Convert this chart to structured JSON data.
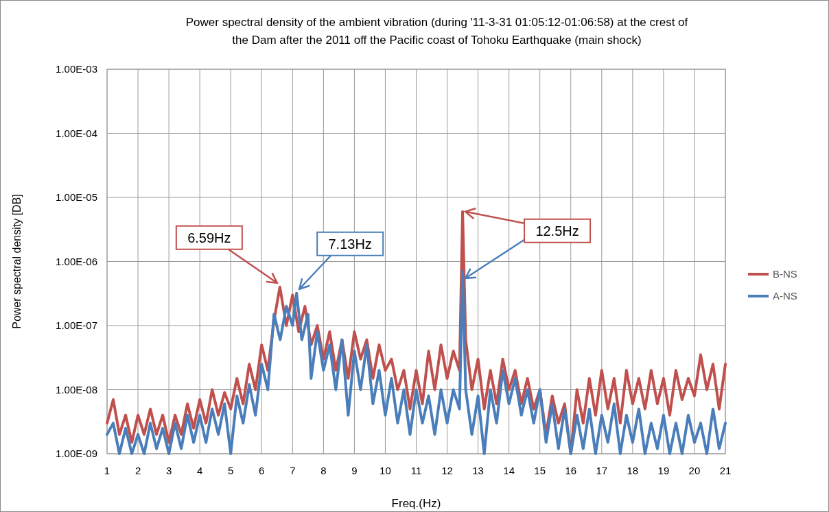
{
  "chart_data": {
    "type": "line",
    "title": "Power spectral density of the ambient vibration (during '11-3-31 01:05:12-01:06:58) at the crest of the Dam after the 2011 off the Pacific coast of Tohoku Earthquake (main shock)",
    "xlabel": "Freq.(Hz)",
    "ylabel": "Power spectral density [DB]",
    "log": "y",
    "grid": true,
    "legend": "right",
    "marker": "none",
    "line_style": "solid",
    "xlim": [
      1,
      21
    ],
    "xticks": [
      1,
      2,
      3,
      4,
      5,
      6,
      7,
      8,
      9,
      10,
      11,
      12,
      13,
      14,
      15,
      16,
      17,
      18,
      19,
      20,
      21
    ],
    "ylim": [
      1e-09,
      0.001
    ],
    "yticks": [
      {
        "value": 1e-09,
        "label": "1.00E-09"
      },
      {
        "value": 1e-08,
        "label": "1.00E-08"
      },
      {
        "value": 1e-07,
        "label": "1.00E-07"
      },
      {
        "value": 1e-06,
        "label": "1.00E-06"
      },
      {
        "value": 1e-05,
        "label": "1.00E-05"
      },
      {
        "value": 0.0001,
        "label": "1.00E-04"
      },
      {
        "value": 0.001,
        "label": "1.00E-03"
      }
    ],
    "annotations": [
      {
        "text": "6.59Hz",
        "x": 6.59,
        "y": 4e-07
      },
      {
        "text": "7.13Hz",
        "x": 7.13,
        "y": 3.2e-07
      },
      {
        "text": "12.5Hz",
        "x": 12.5,
        "y": 6e-06
      }
    ],
    "series": [
      {
        "name": "B-NS",
        "color": "#c0504d",
        "x": [
          1.0,
          1.2,
          1.4,
          1.6,
          1.8,
          2.0,
          2.2,
          2.4,
          2.6,
          2.8,
          3.0,
          3.2,
          3.4,
          3.6,
          3.8,
          4.0,
          4.2,
          4.4,
          4.6,
          4.8,
          5.0,
          5.2,
          5.4,
          5.6,
          5.8,
          6.0,
          6.2,
          6.4,
          6.59,
          6.8,
          7.0,
          7.2,
          7.4,
          7.6,
          7.8,
          8.0,
          8.2,
          8.4,
          8.6,
          8.8,
          9.0,
          9.2,
          9.4,
          9.6,
          9.8,
          10.0,
          10.2,
          10.4,
          10.6,
          10.8,
          11.0,
          11.2,
          11.4,
          11.6,
          11.8,
          12.0,
          12.2,
          12.4,
          12.5,
          12.6,
          12.8,
          13.0,
          13.2,
          13.4,
          13.6,
          13.8,
          14.0,
          14.2,
          14.4,
          14.6,
          14.8,
          15.0,
          15.2,
          15.4,
          15.6,
          15.8,
          16.0,
          16.2,
          16.4,
          16.6,
          16.8,
          17.0,
          17.2,
          17.4,
          17.6,
          17.8,
          18.0,
          18.2,
          18.4,
          18.6,
          18.8,
          19.0,
          19.2,
          19.4,
          19.6,
          19.8,
          20.0,
          20.2,
          20.4,
          20.6,
          20.8,
          21.0
        ],
        "values": [
          3e-09,
          7e-09,
          2e-09,
          4e-09,
          1.5e-09,
          4e-09,
          2e-09,
          5e-09,
          2e-09,
          4e-09,
          1.5e-09,
          4e-09,
          2e-09,
          6e-09,
          2.5e-09,
          7e-09,
          3e-09,
          1e-08,
          4e-09,
          9e-09,
          5e-09,
          1.5e-08,
          6e-09,
          2.5e-08,
          1e-08,
          5e-08,
          2e-08,
          1.2e-07,
          4e-07,
          1e-07,
          3e-07,
          8e-08,
          2e-07,
          5e-08,
          1e-07,
          3e-08,
          8e-08,
          2e-08,
          6e-08,
          1.5e-08,
          8e-08,
          3e-08,
          6e-08,
          1.5e-08,
          5e-08,
          2e-08,
          3e-08,
          1e-08,
          2e-08,
          5e-09,
          2e-08,
          6e-09,
          4e-08,
          1e-08,
          5e-08,
          1.5e-08,
          4e-08,
          2e-08,
          6e-06,
          6e-08,
          1e-08,
          3e-08,
          5e-09,
          2e-08,
          6e-09,
          3e-08,
          1e-08,
          2e-08,
          6e-09,
          1.5e-08,
          5e-09,
          1e-08,
          2e-09,
          8e-09,
          3e-09,
          6e-09,
          1e-09,
          1e-08,
          3e-09,
          1.5e-08,
          4e-09,
          2e-08,
          5e-09,
          1.5e-08,
          3e-09,
          2e-08,
          6e-09,
          1.5e-08,
          5e-09,
          2e-08,
          6e-09,
          1.5e-08,
          4e-09,
          2e-08,
          7e-09,
          1.5e-08,
          8e-09,
          3.5e-08,
          1e-08,
          2.5e-08,
          5e-09,
          2.5e-08
        ]
      },
      {
        "name": "A-NS",
        "color": "#4a7ebb",
        "x": [
          1.0,
          1.2,
          1.4,
          1.6,
          1.8,
          2.0,
          2.2,
          2.4,
          2.6,
          2.8,
          3.0,
          3.2,
          3.4,
          3.6,
          3.8,
          4.0,
          4.2,
          4.4,
          4.6,
          4.8,
          5.0,
          5.2,
          5.4,
          5.6,
          5.8,
          6.0,
          6.2,
          6.4,
          6.6,
          6.8,
          7.0,
          7.13,
          7.3,
          7.5,
          7.6,
          7.8,
          8.0,
          8.2,
          8.4,
          8.6,
          8.8,
          9.0,
          9.2,
          9.4,
          9.6,
          9.8,
          10.0,
          10.2,
          10.4,
          10.6,
          10.8,
          11.0,
          11.2,
          11.4,
          11.6,
          11.8,
          12.0,
          12.2,
          12.4,
          12.5,
          12.6,
          12.8,
          13.0,
          13.2,
          13.4,
          13.6,
          13.8,
          14.0,
          14.2,
          14.4,
          14.6,
          14.8,
          15.0,
          15.2,
          15.4,
          15.6,
          15.8,
          16.0,
          16.2,
          16.4,
          16.6,
          16.8,
          17.0,
          17.2,
          17.4,
          17.6,
          17.8,
          18.0,
          18.2,
          18.4,
          18.6,
          18.8,
          19.0,
          19.2,
          19.4,
          19.6,
          19.8,
          20.0,
          20.2,
          20.4,
          20.6,
          20.8,
          21.0
        ],
        "values": [
          2e-09,
          3e-09,
          1e-09,
          2.5e-09,
          1e-09,
          2e-09,
          1e-09,
          3e-09,
          1.2e-09,
          2.5e-09,
          1e-09,
          3e-09,
          1.2e-09,
          4e-09,
          1.5e-09,
          4e-09,
          1.5e-09,
          5e-09,
          2e-09,
          6e-09,
          1e-09,
          8e-09,
          3e-09,
          1.2e-08,
          4e-09,
          2.5e-08,
          1e-08,
          1.5e-07,
          6e-08,
          2e-07,
          1e-07,
          3.2e-07,
          6e-08,
          1.5e-07,
          1.5e-08,
          8e-08,
          2e-08,
          5e-08,
          1e-08,
          6e-08,
          4e-09,
          4e-08,
          1e-08,
          5e-08,
          6e-09,
          2e-08,
          4e-09,
          1.5e-08,
          3e-09,
          1e-08,
          2e-09,
          1e-08,
          3e-09,
          8e-09,
          2e-09,
          1e-08,
          3e-09,
          1e-08,
          5e-09,
          7e-07,
          1e-08,
          2e-09,
          8e-09,
          1e-09,
          1e-08,
          3e-09,
          2e-08,
          6e-09,
          1.5e-08,
          4e-09,
          1e-08,
          3e-09,
          1e-08,
          1.5e-09,
          6e-09,
          1.2e-09,
          5e-09,
          1e-09,
          4e-09,
          1.2e-09,
          5e-09,
          1e-09,
          4e-09,
          1.5e-09,
          6e-09,
          1e-09,
          4e-09,
          1.5e-09,
          5e-09,
          1e-09,
          3e-09,
          1.2e-09,
          4e-09,
          1e-09,
          3e-09,
          1e-09,
          4e-09,
          1.5e-09,
          3e-09,
          1e-09,
          5e-09,
          1.2e-09,
          3e-09
        ]
      }
    ]
  }
}
